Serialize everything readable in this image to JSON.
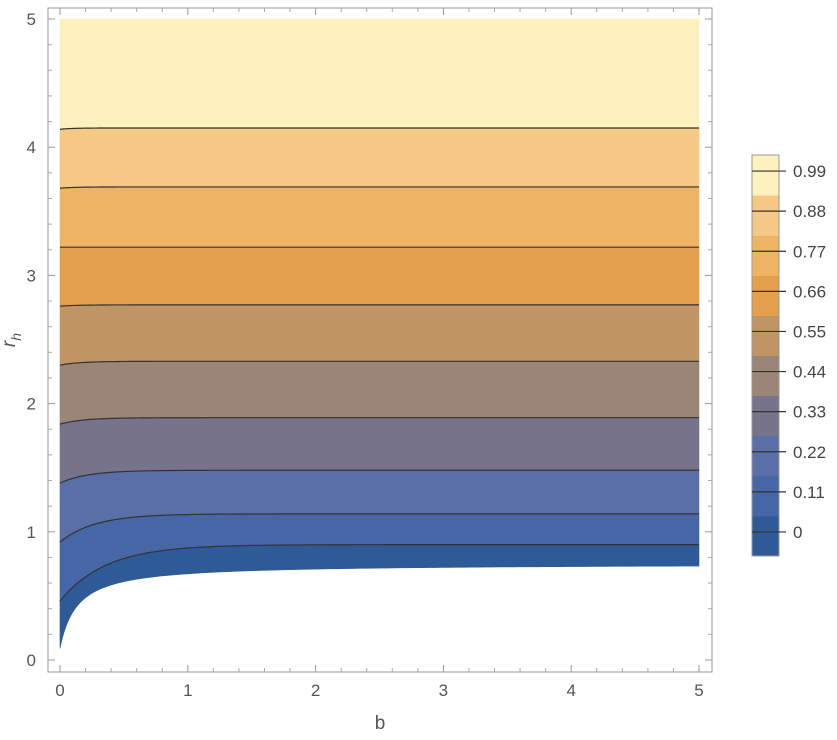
{
  "chart_data": {
    "type": "contour",
    "xlabel": "b",
    "ylabel": "r",
    "ylabel_sub": "h",
    "xlim": [
      0,
      5
    ],
    "ylim": [
      0,
      5
    ],
    "x_ticks": [
      "0",
      "1",
      "2",
      "3",
      "4",
      "5"
    ],
    "y_ticks": [
      "0",
      "1",
      "2",
      "3",
      "4",
      "5"
    ],
    "grid": false,
    "legend_position": "right",
    "contour_levels": [
      0,
      0.11,
      0.22,
      0.33,
      0.44,
      0.55,
      0.66,
      0.77,
      0.88,
      0.99
    ],
    "legend_labels": [
      "0",
      "0.11",
      "0.22",
      "0.33",
      "0.44",
      "0.55",
      "0.66",
      "0.77",
      "0.88",
      "0.99"
    ],
    "band_colors": [
      "#2f5a98",
      "#4766a6",
      "#5a6ea8",
      "#77738b",
      "#9a8576",
      "#c19465",
      "#e3a04c",
      "#efb366",
      "#f5c985",
      "#fdf1bf"
    ],
    "contour_lines_at_b5": [
      0.9,
      1.14,
      1.48,
      1.89,
      2.33,
      2.77,
      3.22,
      3.69,
      4.15
    ],
    "contour_lines_at_b0": [
      0.46,
      0.92,
      1.38,
      1.84,
      2.3,
      2.76,
      3.22,
      3.68,
      4.14
    ],
    "domain_boundary_at_b5": 0.75
  }
}
